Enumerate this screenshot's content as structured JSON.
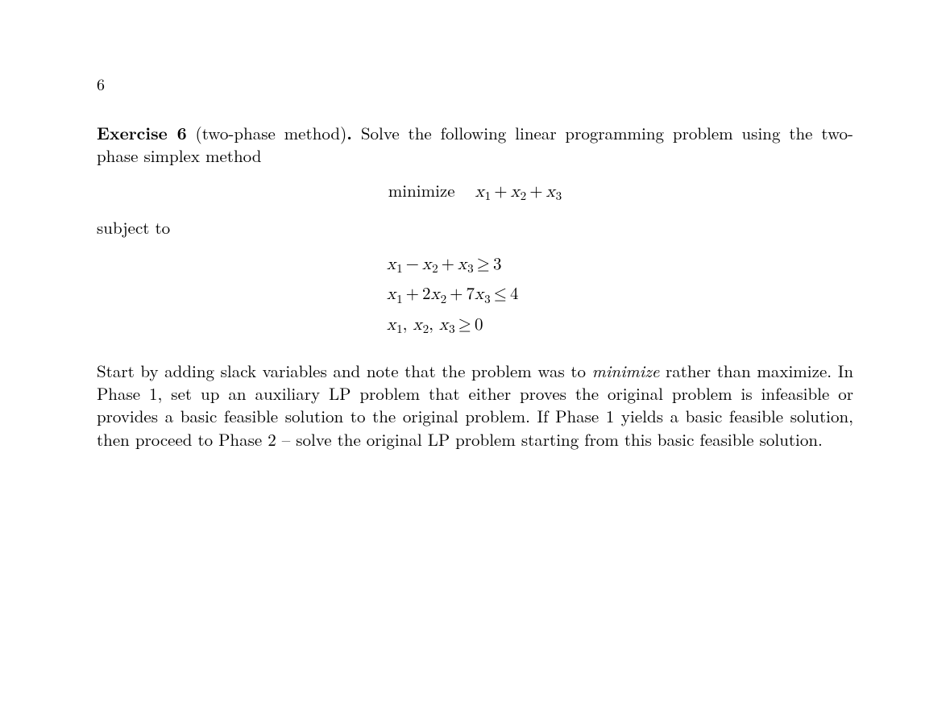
{
  "page_number": "6",
  "exercise": {
    "label_bold": "Exercise 6",
    "label_paren": "(two-phase method)",
    "label_period": ".",
    "intro": "Solve the following linear programming problem using the two-phase simplex method",
    "minimize_word": "minimize",
    "objective": {
      "x1": "x",
      "s1": "1",
      "plus1": "+",
      "x2": "x",
      "s2": "2",
      "plus2": "+",
      "x3": "x",
      "s3": "3"
    },
    "subject_to": "subject to",
    "constraints": {
      "c1": {
        "x1": "x",
        "s1": "1",
        "op1": "−",
        "x2": "x",
        "s2": "2",
        "op2": "+",
        "x3": "x",
        "s3": "3",
        "rel": "≥",
        "rhs": "3"
      },
      "c2": {
        "x1": "x",
        "s1": "1",
        "op1": "+",
        "coef2": "2",
        "x2": "x",
        "s2": "2",
        "op2": "+",
        "coef3": "7",
        "x3": "x",
        "s3": "3",
        "rel": "≤",
        "rhs": "4"
      },
      "c3": {
        "x1": "x",
        "s1": "1",
        "comma1": ",",
        "x2": "x",
        "s2": "2",
        "comma2": ",",
        "x3": "x",
        "s3": "3",
        "rel": "≥",
        "rhs": "0"
      }
    },
    "body_pre": "Start by adding slack variables and note that the problem was to ",
    "body_em": "minimize",
    "body_post": " rather than maximize. In Phase 1, set up an auxiliary LP problem that either proves the original problem is infeasible or provides a basic feasible solution to the original problem. If Phase 1 yields a basic feasible solution, then proceed to Phase 2 – solve the original LP problem starting from this basic feasible solution."
  }
}
